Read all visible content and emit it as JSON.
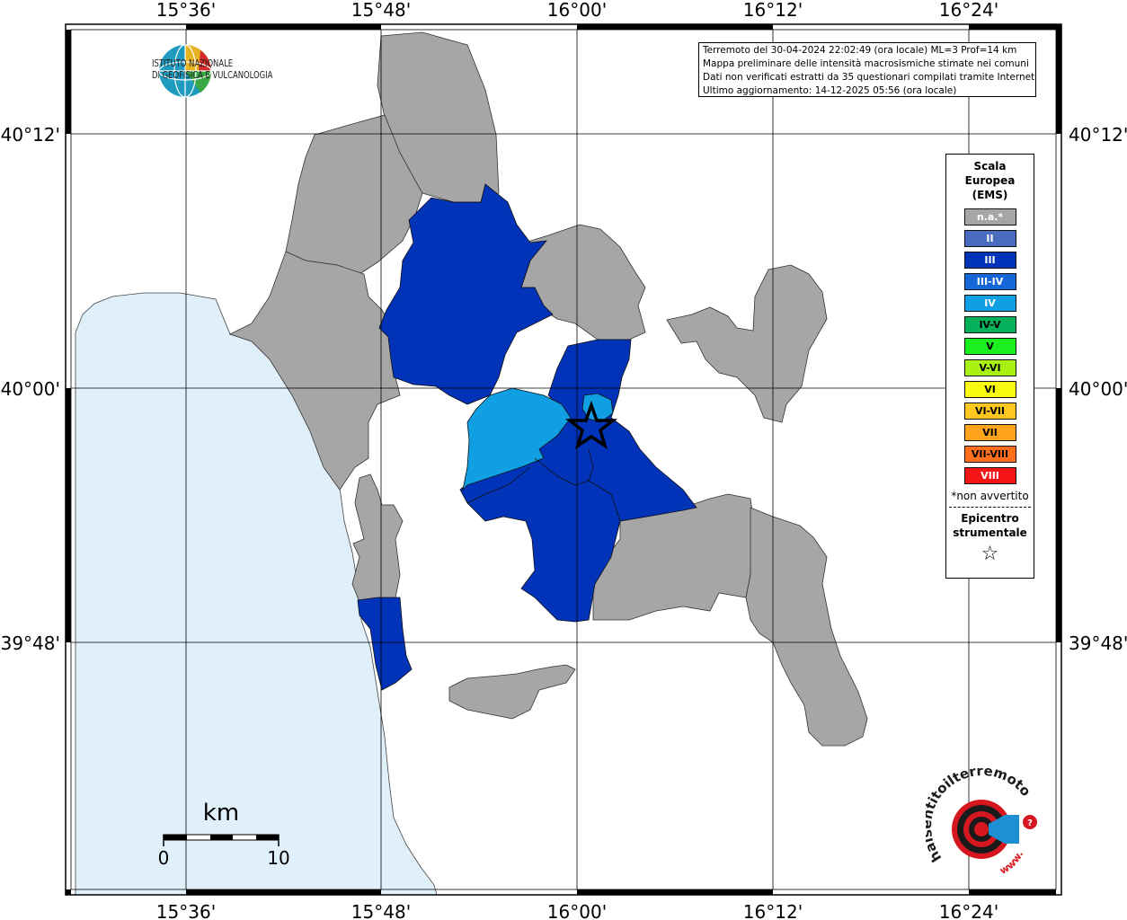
{
  "map": {
    "top_labels": [
      "15°36'",
      "15°48'",
      "16°00'",
      "16°12'",
      "16°24'"
    ],
    "bottom_labels": [
      "15°36'",
      "15°48'",
      "16°00'",
      "16°12'",
      "16°24'"
    ],
    "left_labels": [
      "40°12'",
      "40°00'",
      "39°48'"
    ],
    "right_labels": [
      "40°12'",
      "40°00'",
      "39°48'"
    ]
  },
  "colors": {
    "sea": "#e0f0fb",
    "land": "#ffffff",
    "not_felt": "#a6a6a6",
    "intensity_III": "#0033b8",
    "intensity_IV": "#109fe3",
    "grid": "#000000"
  },
  "info": {
    "line1": "Terremoto del 30-04-2024 22:02:49 (ora locale) ML=3 Prof=14 km",
    "line2": "Mappa preliminare delle intensità macrosismiche stimate nei comuni",
    "line3": "Dati non verificati estratti da 35 questionari compilati tramite Internet.",
    "line4": "Ultimo aggiornamento: 14-12-2025 05:56 (ora locale)"
  },
  "legend": {
    "title1": "Scala",
    "title2": "Europea",
    "title3": "(EMS)",
    "items": [
      {
        "label": "n.a.*",
        "color": "#a6a6a6",
        "text_dark": false
      },
      {
        "label": "II",
        "color": "#4a6cc0",
        "text_dark": false
      },
      {
        "label": "III",
        "color": "#0033b8",
        "text_dark": false
      },
      {
        "label": "III-IV",
        "color": "#1566d6",
        "text_dark": false
      },
      {
        "label": "IV",
        "color": "#109fe3",
        "text_dark": false
      },
      {
        "label": "IV-V",
        "color": "#06b05a",
        "text_dark": true
      },
      {
        "label": "V",
        "color": "#19f01e",
        "text_dark": true
      },
      {
        "label": "V-VI",
        "color": "#a7f212",
        "text_dark": true
      },
      {
        "label": "VI",
        "color": "#fbfb12",
        "text_dark": true
      },
      {
        "label": "VI-VII",
        "color": "#ffc820",
        "text_dark": true
      },
      {
        "label": "VII",
        "color": "#ffa41a",
        "text_dark": true
      },
      {
        "label": "VII-VIII",
        "color": "#ff6f1c",
        "text_dark": true
      },
      {
        "label": "VIII",
        "color": "#f51416",
        "text_dark": false
      }
    ],
    "note": "*non avvertito",
    "epicenter1": "Epicentro",
    "epicenter2": "strumentale",
    "star": "☆"
  },
  "scale_bar": {
    "unit": "km",
    "min": "0",
    "max": "10"
  },
  "logos": {
    "ingv_line1": "ISTITUTO NAZIONALE",
    "ingv_line2": "DI GEOFISICA E VULCANOLOGIA",
    "hst_text": "haisentitoilterremoto.it",
    "hst_www": "www."
  }
}
